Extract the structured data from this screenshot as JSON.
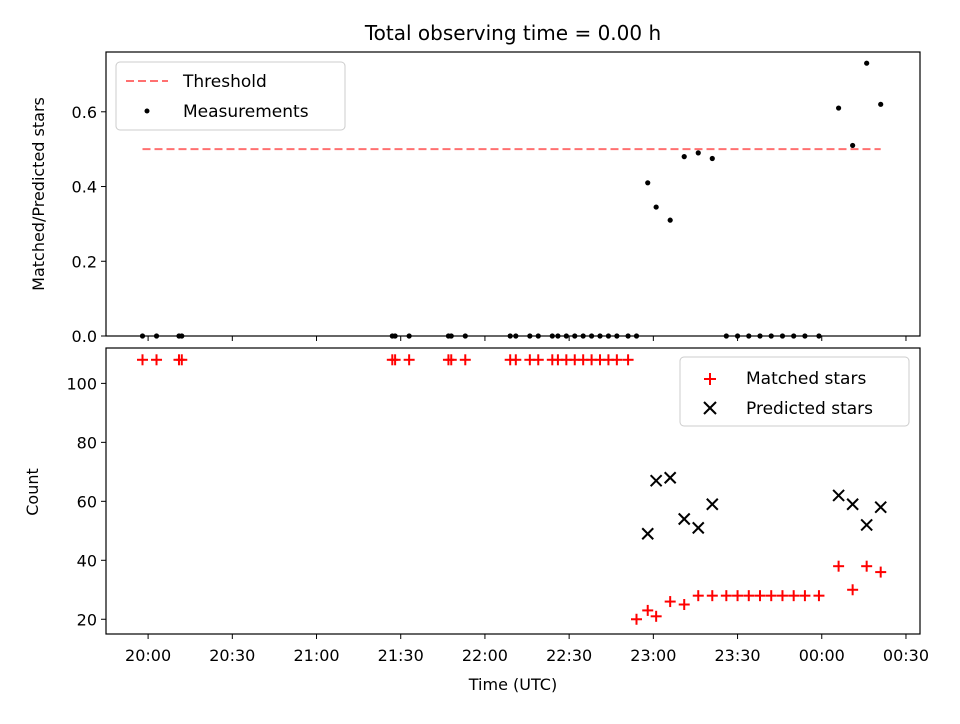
{
  "chart_data": [
    {
      "type": "scatter",
      "title": "Total observing time = 0.00 h",
      "xlabel": "",
      "ylabel": "Matched/Predicted stars",
      "xlim": [
        "19:45",
        "00:35"
      ],
      "ylim": [
        0,
        0.76
      ],
      "yticks": [
        "0.0",
        "0.2",
        "0.4",
        "0.6"
      ],
      "legend_position": "upper-left",
      "series": [
        {
          "name": "Threshold",
          "style": "dashed-line",
          "color": "#ff7070",
          "x": [
            "19:58",
            "00:21"
          ],
          "y": [
            0.5,
            0.5
          ]
        },
        {
          "name": "Measurements",
          "style": "dots",
          "color": "#000000",
          "x": [
            "19:58",
            "20:03",
            "20:11",
            "20:12",
            "21:27",
            "21:28",
            "21:33",
            "21:47",
            "21:48",
            "21:53",
            "22:09",
            "22:11",
            "22:16",
            "22:19",
            "22:24",
            "22:26",
            "22:29",
            "22:32",
            "22:35",
            "22:38",
            "22:41",
            "22:44",
            "22:47",
            "22:51",
            "22:54",
            "22:58",
            "23:01",
            "23:06",
            "23:11",
            "23:16",
            "23:21",
            "23:26",
            "23:30",
            "23:34",
            "23:38",
            "23:42",
            "23:46",
            "23:50",
            "23:54",
            "23:59",
            "00:06",
            "00:11",
            "00:16",
            "00:21"
          ],
          "y": [
            0,
            0,
            0,
            0,
            0,
            0,
            0,
            0,
            0,
            0,
            0,
            0,
            0,
            0,
            0,
            0,
            0,
            0,
            0,
            0,
            0,
            0,
            0,
            0,
            0,
            0.41,
            0.345,
            0.31,
            0.48,
            0.49,
            0.475,
            0,
            0,
            0,
            0,
            0,
            0,
            0,
            0,
            0,
            0.61,
            0.51,
            0.73,
            0.62
          ]
        }
      ]
    },
    {
      "type": "scatter",
      "title": "",
      "xlabel": "Time (UTC)",
      "ylabel": "Count",
      "xlim": [
        "19:45",
        "00:35"
      ],
      "ylim": [
        15,
        112
      ],
      "yticks": [
        "20",
        "40",
        "60",
        "80",
        "100"
      ],
      "xticks": [
        "20:00",
        "20:30",
        "21:00",
        "21:30",
        "22:00",
        "22:30",
        "23:00",
        "23:30",
        "00:00",
        "00:30"
      ],
      "legend_position": "upper-right",
      "series": [
        {
          "name": "Matched stars",
          "marker": "plus",
          "color": "#ff0000",
          "x": [
            "19:58",
            "20:03",
            "20:11",
            "20:12",
            "21:27",
            "21:28",
            "21:33",
            "21:47",
            "21:48",
            "21:53",
            "22:09",
            "22:11",
            "22:16",
            "22:19",
            "22:24",
            "22:26",
            "22:29",
            "22:32",
            "22:35",
            "22:38",
            "22:41",
            "22:44",
            "22:47",
            "22:51",
            "22:54",
            "22:58",
            "23:01",
            "23:06",
            "23:11",
            "23:16",
            "23:21",
            "23:26",
            "23:30",
            "23:34",
            "23:38",
            "23:42",
            "23:46",
            "23:50",
            "23:54",
            "23:59",
            "00:06",
            "00:11",
            "00:16",
            "00:21"
          ],
          "y": [
            108,
            108,
            108,
            108,
            108,
            108,
            108,
            108,
            108,
            108,
            108,
            108,
            108,
            108,
            108,
            108,
            108,
            108,
            108,
            108,
            108,
            108,
            108,
            108,
            20,
            23,
            21,
            26,
            25,
            28,
            28,
            28,
            28,
            28,
            28,
            28,
            28,
            28,
            28,
            28,
            38,
            30,
            38,
            36
          ]
        },
        {
          "name": "Predicted stars",
          "marker": "x",
          "color": "#000000",
          "x": [
            "22:58",
            "23:01",
            "23:06",
            "23:11",
            "23:16",
            "23:21",
            "00:06",
            "00:11",
            "00:16",
            "00:21"
          ],
          "y": [
            49,
            67,
            68,
            54,
            51,
            59,
            62,
            59,
            52,
            58
          ]
        }
      ]
    }
  ]
}
